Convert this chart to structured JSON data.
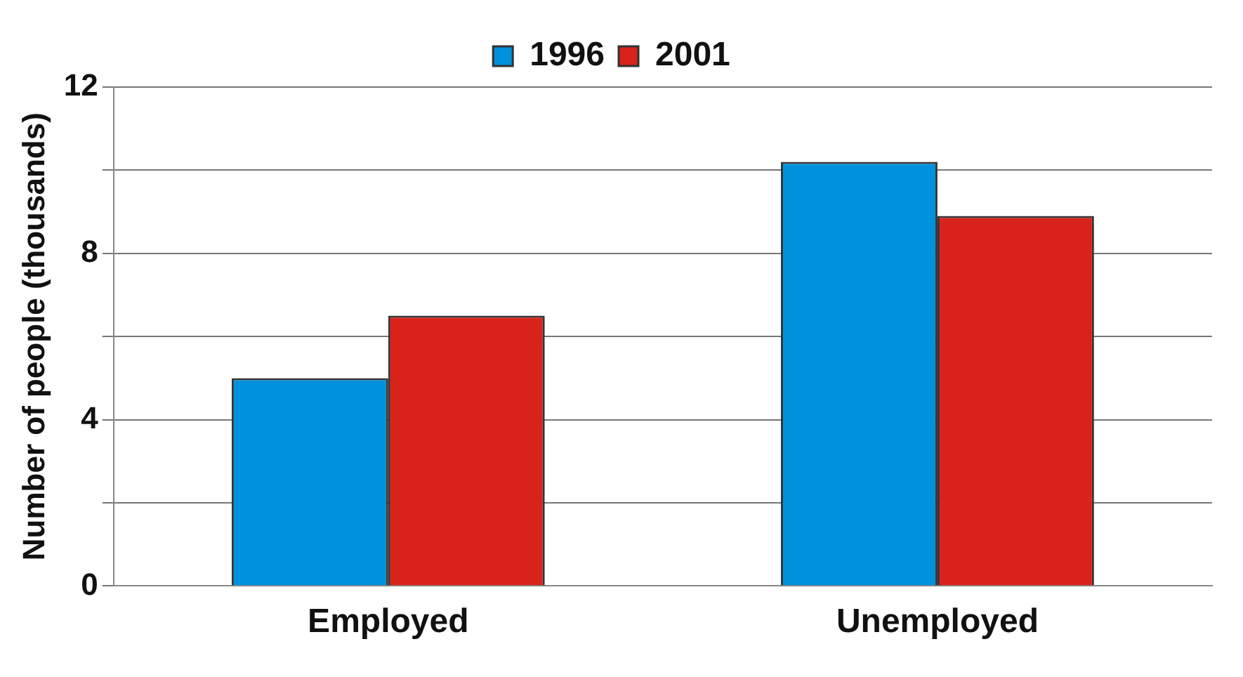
{
  "chart_data": {
    "type": "bar",
    "ylabel": "Number of people (thousands)",
    "categories": [
      "Employed",
      "Unemployed"
    ],
    "series": [
      {
        "name": "1996",
        "color": "#0091dc",
        "values": [
          5,
          10.2
        ]
      },
      {
        "name": "2001",
        "color": "#d8231b",
        "values": [
          6.5,
          8.9
        ]
      }
    ],
    "ylim": [
      0,
      12
    ],
    "yticks": [
      0,
      {
        "value": 2,
        "label": null
      },
      4,
      {
        "value": 6,
        "label": null
      },
      8,
      {
        "value": 10,
        "label": null
      },
      12
    ],
    "grid": "y",
    "legend": "top"
  }
}
